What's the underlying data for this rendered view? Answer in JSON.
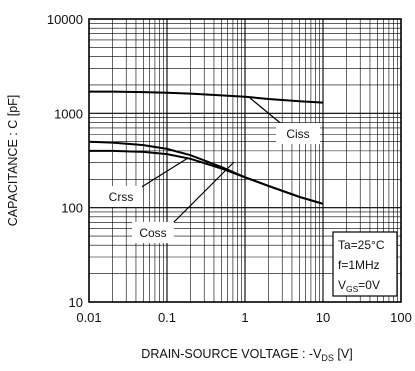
{
  "chart_data": {
    "type": "line",
    "xscale": "log",
    "yscale": "log",
    "xlim": [
      0.01,
      100
    ],
    "ylim": [
      10,
      10000
    ],
    "grid": true,
    "xlabel": {
      "main": "DRAIN-SOURCE VOLTAGE : -V",
      "sub": "DS",
      "unit": " [V]"
    },
    "ylabel": "CAPACITANCE : C [pF]",
    "x_ticks": [
      {
        "value": 0.01,
        "label": "0.01"
      },
      {
        "value": 0.1,
        "label": "0.1"
      },
      {
        "value": 1,
        "label": "1"
      },
      {
        "value": 10,
        "label": "10"
      },
      {
        "value": 100,
        "label": "100"
      }
    ],
    "y_ticks": [
      {
        "value": 10,
        "label": "10"
      },
      {
        "value": 100,
        "label": "100"
      },
      {
        "value": 1000,
        "label": "1000"
      },
      {
        "value": 10000,
        "label": "10000"
      }
    ],
    "series": [
      {
        "name": "Ciss",
        "x": [
          0.01,
          0.02,
          0.05,
          0.1,
          0.2,
          0.5,
          1,
          2,
          5,
          10
        ],
        "y": [
          1700,
          1700,
          1680,
          1650,
          1620,
          1550,
          1500,
          1420,
          1340,
          1300
        ]
      },
      {
        "name": "Crss",
        "x": [
          0.01,
          0.02,
          0.05,
          0.1,
          0.2,
          0.5,
          1,
          2,
          5,
          10
        ],
        "y": [
          500,
          490,
          460,
          420,
          360,
          270,
          210,
          170,
          130,
          110
        ]
      },
      {
        "name": "Coss",
        "x": [
          0.01,
          0.02,
          0.05,
          0.1,
          0.2,
          0.5,
          1,
          2,
          5,
          10
        ],
        "y": [
          400,
          400,
          390,
          370,
          330,
          260,
          210,
          170,
          130,
          110
        ]
      }
    ],
    "conditions": {
      "line1": {
        "main": "Ta=25°C"
      },
      "line2": {
        "main": "f=1MHz"
      },
      "line3": {
        "prefix": "V",
        "sub": "GS",
        "suffix": "=0V"
      }
    }
  }
}
